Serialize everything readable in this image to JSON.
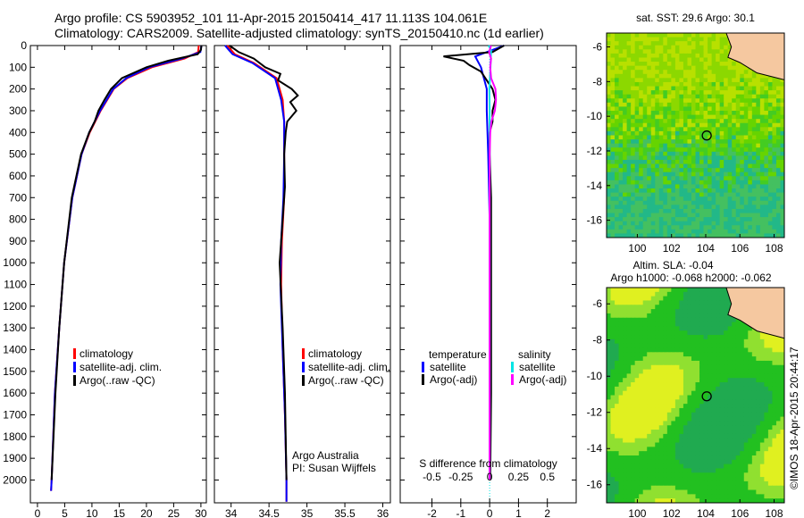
{
  "header": {
    "line1": "Argo profile: CS 5903952_101 11-Apr-2015 20150414_417 11.113S 104.061E",
    "line2": "Climatology: CARS2009. Satellite-adjusted climatology: synTS_20150410.nc (1d earlier)"
  },
  "credit": "©IMOS 18-Apr-2015 20:44:17",
  "colors": {
    "climatology": "#ff0000",
    "satellite": "#0000ff",
    "argo": "#000000",
    "sal_sat": "#00e5e5",
    "sal_argo": "#ff00ff"
  },
  "chart_data": [
    {
      "type": "line",
      "name": "temperature",
      "xlabel": "temperature (deg C)",
      "xlim": [
        -1.3,
        31
      ],
      "ylim": [
        2105,
        0
      ],
      "xticks": [
        0,
        5,
        10,
        15,
        20,
        25,
        30
      ],
      "yticks": [
        0,
        100,
        200,
        300,
        400,
        500,
        600,
        700,
        800,
        900,
        1000,
        1100,
        1200,
        1300,
        1400,
        1500,
        1600,
        1700,
        1800,
        1900,
        2000
      ],
      "legend": [
        "climatology",
        "satellite-adj. clim.",
        "Argo(..raw -QC)"
      ],
      "series": [
        {
          "name": "climatology",
          "color": "#ff0000",
          "depth": [
            0,
            30,
            60,
            100,
            150,
            200,
            300,
            400,
            500,
            700,
            1000,
            1300,
            1600,
            2000,
            2050
          ],
          "values": [
            29.6,
            29.5,
            27,
            21,
            16.5,
            14,
            11.6,
            9.6,
            8.1,
            6.4,
            4.9,
            4,
            3.2,
            2.6,
            2.5
          ]
        },
        {
          "name": "satellite-adj. clim.",
          "color": "#0000ff",
          "depth": [
            0,
            30,
            60,
            100,
            150,
            200,
            300,
            400,
            500,
            700,
            1000,
            1300,
            1600,
            2000,
            2050
          ],
          "values": [
            30.1,
            29.9,
            26.5,
            20.5,
            16.3,
            13.9,
            11.5,
            9.5,
            8.1,
            6.4,
            4.9,
            4,
            3.2,
            2.6,
            2.5
          ]
        },
        {
          "name": "Argo(..raw -QC)",
          "color": "#000000",
          "depth": [
            0,
            20,
            40,
            70,
            100,
            150,
            200,
            250,
            300,
            350,
            400,
            500,
            700,
            1000,
            1300,
            1600,
            2000
          ],
          "values": [
            30.1,
            30,
            29.4,
            24,
            20,
            15.5,
            13.5,
            12.3,
            11.2,
            10.5,
            9.5,
            8,
            6.3,
            4.9,
            4,
            3.3,
            2.6
          ]
        }
      ]
    },
    {
      "type": "line",
      "name": "salinity",
      "xlabel": "salinity",
      "xlim": [
        33.78,
        36.1
      ],
      "ylim": [
        2105,
        0
      ],
      "xticks": [
        34,
        34.5,
        35,
        35.5,
        36
      ],
      "legend": [
        "climatology",
        "satellite-adj. clim.",
        "Argo(..raw -QC)"
      ],
      "annotations": [
        "Argo Australia",
        "PI: Susan Wijffels"
      ],
      "series": [
        {
          "name": "climatology",
          "color": "#ff0000",
          "depth": [
            0,
            40,
            80,
            150,
            250,
            350,
            500,
            700,
            900,
            1100,
            1400,
            1700,
            2000,
            2100
          ],
          "values": [
            33.95,
            34.05,
            34.3,
            34.6,
            34.68,
            34.7,
            34.7,
            34.7,
            34.67,
            34.66,
            34.68,
            34.71,
            34.73,
            34.73
          ]
        },
        {
          "name": "satellite-adj. clim.",
          "color": "#0000ff",
          "depth": [
            0,
            40,
            80,
            150,
            250,
            350,
            500,
            700,
            900,
            1100,
            1400,
            1700,
            2000,
            2100
          ],
          "values": [
            33.92,
            34.02,
            34.28,
            34.58,
            34.66,
            34.7,
            34.7,
            34.69,
            34.66,
            34.65,
            34.68,
            34.71,
            34.73,
            34.73
          ]
        },
        {
          "name": "Argo(..raw -QC)",
          "color": "#000000",
          "depth": [
            0,
            30,
            60,
            100,
            130,
            160,
            200,
            230,
            260,
            300,
            350,
            400,
            500,
            650,
            800,
            1000,
            1300,
            1600,
            2000
          ],
          "values": [
            33.98,
            34.1,
            34.3,
            34.45,
            34.65,
            34.62,
            34.8,
            34.88,
            34.78,
            34.86,
            34.74,
            34.72,
            34.7,
            34.71,
            34.68,
            34.64,
            34.68,
            34.71,
            34.73
          ]
        }
      ]
    },
    {
      "type": "line",
      "name": "difference",
      "xlabel": "T difference from climatology",
      "x2label": "S difference from climatology",
      "xlim": [
        -3.1,
        3.0
      ],
      "ylim": [
        2105,
        0
      ],
      "xticks": [
        -2,
        -1,
        0,
        1,
        2
      ],
      "x2ticks": [
        -0.5,
        -0.25,
        0,
        0.25,
        0.5
      ],
      "legend_titles": [
        "temperature",
        "salinity"
      ],
      "legend": [
        "satellite",
        "Argo(-adj)",
        "satellite",
        "Argo(-adj)"
      ],
      "series": [
        {
          "name": "temperature satellite",
          "color": "#0000ff",
          "depth": [
            0,
            50,
            100,
            200,
            300,
            500,
            800,
            1000,
            1500,
            2000
          ],
          "values": [
            0.5,
            -0.5,
            -0.3,
            -0.1,
            -0.1,
            -0.05,
            0,
            0,
            0,
            0
          ]
        },
        {
          "name": "temperature Argo(-adj)",
          "color": "#000000",
          "depth": [
            0,
            30,
            50,
            70,
            90,
            120,
            160,
            200,
            250,
            300,
            350,
            400,
            500,
            700,
            1000,
            1300,
            1600,
            2000
          ],
          "values": [
            0.5,
            0.1,
            -1.6,
            -0.9,
            -0.7,
            -0.3,
            -0.1,
            0.1,
            0.2,
            0.1,
            0.1,
            0,
            0,
            0.05,
            0.05,
            0.05,
            0.05,
            0.02
          ]
        },
        {
          "name": "salinity satellite",
          "color": "#00e5e5",
          "depth": [
            0,
            20,
            60,
            100,
            200,
            300,
            500,
            1000,
            1500,
            2000
          ],
          "values": [
            -0.04,
            0.05,
            0.04,
            0.03,
            -0.01,
            0,
            0,
            0,
            0,
            0
          ]
        },
        {
          "name": "salinity Argo(-adj)",
          "color": "#ff00ff",
          "depth": [
            0,
            30,
            60,
            100,
            150,
            200,
            250,
            300,
            350,
            400,
            500,
            1000,
            1500,
            2000
          ],
          "values": [
            0.05,
            -0.02,
            0.05,
            0.02,
            0.05,
            0.2,
            0.22,
            0.18,
            0.06,
            0.02,
            0,
            0,
            0,
            0
          ]
        }
      ]
    }
  ],
  "maps": [
    {
      "title": "sat. SST: 29.6 Argo: 30.1",
      "xticks": [
        100,
        102,
        104,
        106,
        108
      ],
      "yticks": [
        -6,
        -8,
        -10,
        -12,
        -14,
        -16
      ],
      "lon": [
        98.2,
        108.6
      ],
      "lat": [
        -5.2,
        -17
      ],
      "argo": [
        104.06,
        -11.11
      ]
    },
    {
      "title": "Altim. SLA: -0.04",
      "subtitle": "Argo h1000: -0.068 h2000: -0.062",
      "xticks": [
        100,
        102,
        104,
        106,
        108
      ],
      "yticks": [
        -6,
        -8,
        -10,
        -12,
        -14,
        -16
      ],
      "lon": [
        98.2,
        108.6
      ],
      "lat": [
        -5.1,
        -17
      ],
      "argo": [
        104.06,
        -11.11
      ]
    }
  ]
}
